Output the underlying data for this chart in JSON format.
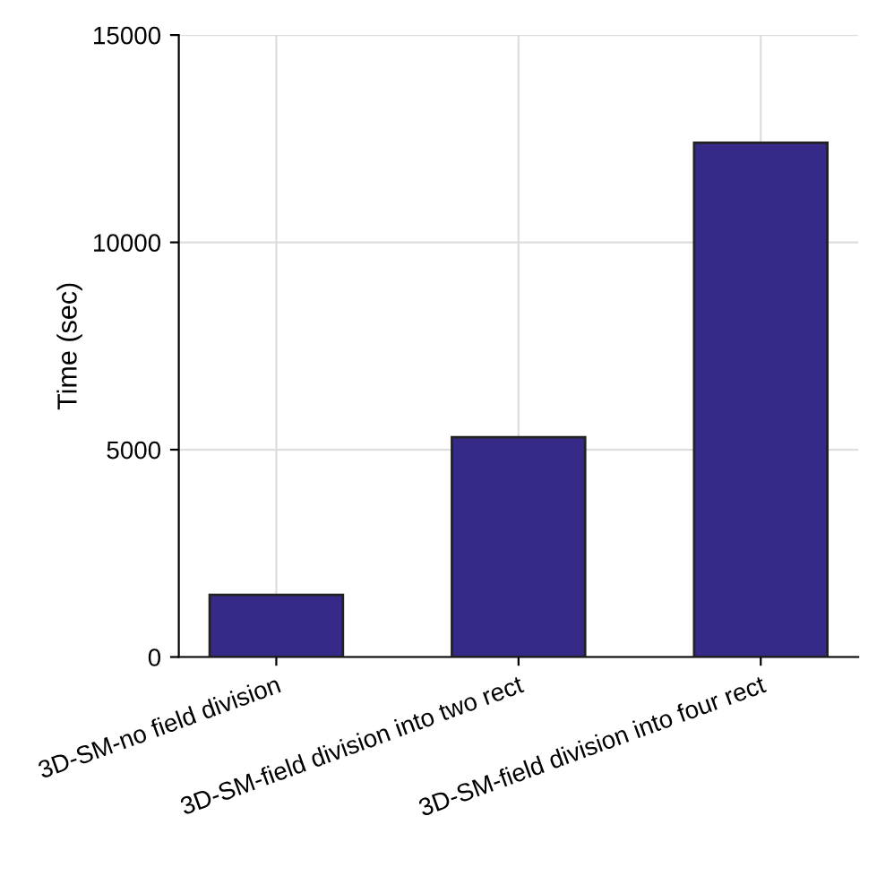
{
  "chart_data": {
    "type": "bar",
    "ylabel": "Time (sec)",
    "categories": [
      "3D-SM-no field division",
      "3D-SM-field division into two rect",
      "3D-SM-field division into four rect"
    ],
    "values": [
      1500,
      5300,
      12400
    ],
    "color": "#352a87",
    "ylim": [
      0,
      15000
    ],
    "yticks": [
      0,
      5000,
      10000,
      15000
    ],
    "grid": true
  }
}
